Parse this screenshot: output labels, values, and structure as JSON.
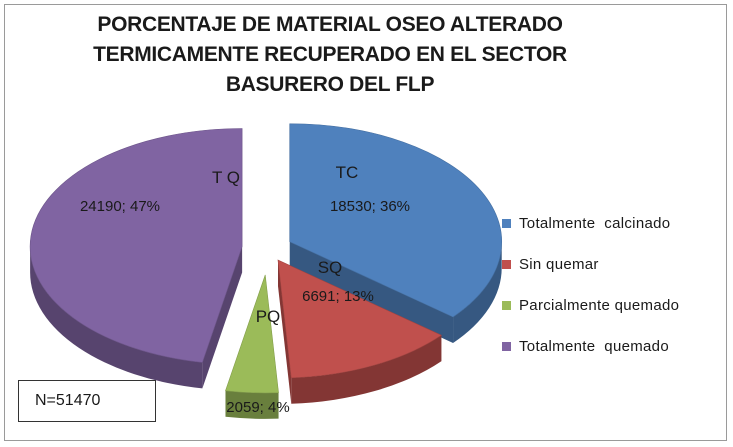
{
  "chart_data": {
    "type": "pie",
    "title_lines": [
      "PORCENTAJE DE MATERIAL OSEO  ALTERADO",
      "TERMICAMENTE RECUPERADO EN EL SECTOR",
      "BASURERO DEL FLP"
    ],
    "slices": [
      {
        "code": "TC",
        "label": "Totalmente  calcinado",
        "value": 18530,
        "percent": 36,
        "data_label": "18530; 36%",
        "color": "#4f81bd"
      },
      {
        "code": "SQ",
        "label": "Sin quemar",
        "value": 6691,
        "percent": 13,
        "data_label": "6691; 13%",
        "color": "#c0504d"
      },
      {
        "code": "PQ",
        "label": "Parcialmente quemado",
        "value": 2059,
        "percent": 4,
        "data_label": "2059; 4%",
        "color": "#9bbb59"
      },
      {
        "code": "T Q",
        "label": "Totalmente  quemado",
        "value": 24190,
        "percent": 47,
        "data_label": "24190; 47%",
        "color": "#8064a2"
      }
    ],
    "legend_position": "right",
    "exploded": true,
    "style": "3d"
  },
  "note_box": "N=51470"
}
